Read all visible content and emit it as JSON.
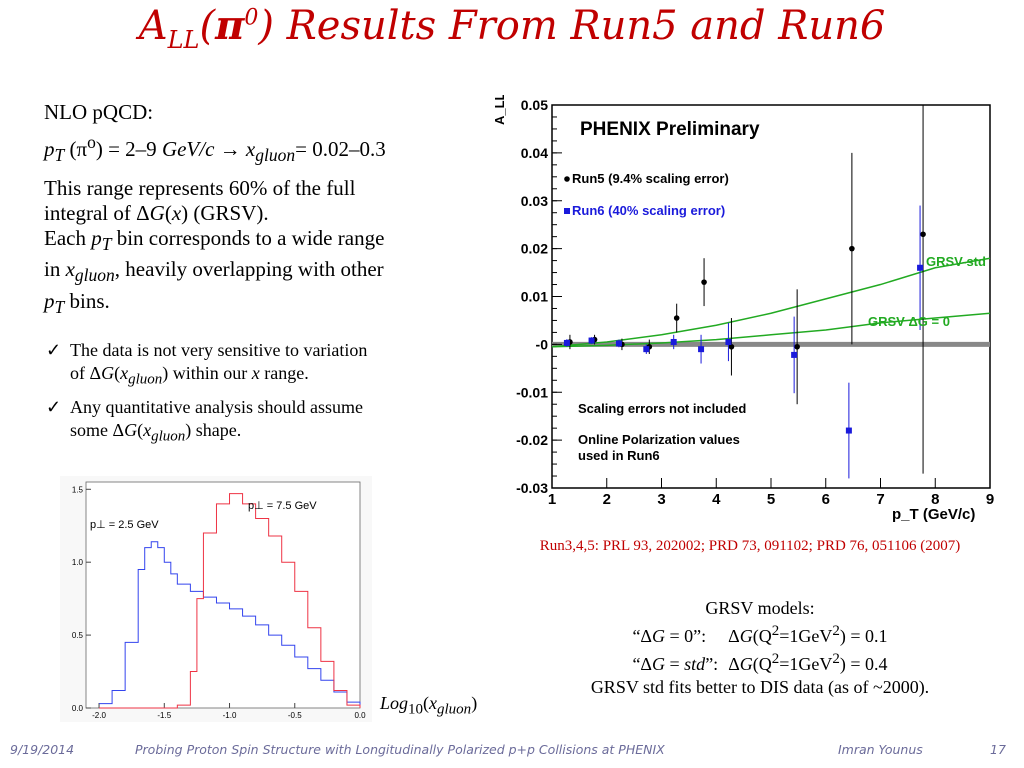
{
  "title": {
    "prefix": "A",
    "subscript": "LL",
    "paren_open": "(",
    "pi": "π",
    "pi_sup": "0",
    "rest": ") Results From Run5 and Run6"
  },
  "left_text": {
    "line1": "NLO pQCD:",
    "line2_a": "p",
    "line2_a_sub": "T",
    "line2_b": " (π",
    "line2_b_sup": "o",
    "line2_c": ") = 2–9 ",
    "line2_unit": "GeV/c",
    "line2_arrow": " → ",
    "line2_x": "x",
    "line2_x_sub": "gluon",
    "line2_d": "= 0.02–0.3",
    "para1": "This range represents 60% of the full",
    "para1b_a": "integral of Δ",
    "para1b_G": "G",
    "para1b_b": "(",
    "para1b_x": "x",
    "para1b_c": ") (GRSV).",
    "para2_a": "Each ",
    "para2_p": "p",
    "para2_T": "T",
    "para2_b": " bin corresponds to a wide range",
    "para2c_a": "in ",
    "para2c_x": "x",
    "para2c_sub": "gluon",
    "para2c_b": ", heavily overlapping with other",
    "para2d_p": "p",
    "para2d_T": "T",
    "para2d_b": " bins.",
    "bullets": [
      {
        "a": "The data is not very sensitive to variation",
        "b1": "of Δ",
        "G": "G",
        "b2": "(",
        "x": "x",
        "sub": "gluon",
        "b3": ") within our ",
        "x2": "x",
        "b4": " range."
      },
      {
        "a": "Any quantitative analysis should assume",
        "b1": "some Δ",
        "G": "G",
        "b2": "(",
        "x": "x",
        "sub": "gluon",
        "b3": ") shape."
      }
    ],
    "bullet_mark": "✓"
  },
  "reference": "Run3,4,5: PRL 93, 202002; PRD 73, 091102; PRD 76, 051106 (2007)",
  "grsv_box": {
    "l1": "GRSV models:",
    "l2_a": "“Δ",
    "l2_G": "G",
    "l2_b": " = 0”:",
    "l2_c": "Δ",
    "l2_G2": "G",
    "l2_d": "(Q",
    "l2_e": "2",
    "l2_f": "=1GeV",
    "l2_g": "2",
    "l2_h": ") = 0.1",
    "l3_a": "“Δ",
    "l3_G": "G",
    "l3_b": " = ",
    "l3_std": "std",
    "l3_c": "”:",
    "l3_d": "Δ",
    "l3_G2": "G",
    "l3_e": "(Q",
    "l3_f": "2",
    "l3_g": "=1GeV",
    "l3_h": "2",
    "l3_i": ") = 0.4",
    "l4": "GRSV std fits better to DIS data (as of  ~2000)."
  },
  "log_label": {
    "a": "Log",
    "sub": "10",
    "b": "(",
    "x": "x",
    "xsub": "gluon",
    "c": ")"
  },
  "footer": {
    "date": "9/19/2014",
    "talk": "Probing Proton Spin Structure with Longitudinally Polarized p+p Collisions at PHENIX",
    "author": "Imran Younus",
    "page": "17"
  },
  "chart_data": [
    {
      "type": "scatter",
      "title": "PHENIX Preliminary",
      "xlabel": "p_T (GeV/c)",
      "ylabel": "A_LL^π0",
      "xlim": [
        1,
        9
      ],
      "ylim": [
        -0.03,
        0.05
      ],
      "xticks": [
        "1",
        "2",
        "3",
        "4",
        "5",
        "6",
        "7",
        "8",
        "9"
      ],
      "yticks": [
        "0.05",
        "0.04",
        "0.03",
        "0.02",
        "0.01",
        "-0",
        "-0.01",
        "-0.02",
        "-0.03"
      ],
      "series": [
        {
          "name": "Run5 (9.4% scaling error)",
          "color": "#000000",
          "marker": "circle",
          "x": [
            1.3,
            1.75,
            2.25,
            2.75,
            3.25,
            3.75,
            4.25,
            5.45,
            6.45,
            7.75
          ],
          "y": [
            0.0005,
            0.001,
            0.0,
            -0.0005,
            0.0055,
            0.013,
            -0.0005,
            -0.0005,
            0.02,
            0.023
          ],
          "err": [
            0.0015,
            0.001,
            0.0012,
            0.0015,
            0.003,
            0.005,
            0.006,
            0.012,
            0.02,
            0.05
          ]
        },
        {
          "name": "Run6 (40% scaling error)",
          "color": "#1a1adb",
          "marker": "square",
          "x": [
            1.3,
            1.75,
            2.25,
            2.75,
            3.25,
            3.75,
            4.25,
            5.45,
            6.45,
            7.75
          ],
          "y": [
            0.0003,
            0.0008,
            0.0002,
            -0.001,
            0.0005,
            -0.001,
            0.0005,
            -0.0022,
            -0.018,
            0.016
          ],
          "err": [
            0.0008,
            0.0007,
            0.0008,
            0.001,
            0.0015,
            0.003,
            0.004,
            0.008,
            0.01,
            0.013
          ]
        }
      ],
      "curves": [
        {
          "name": "GRSV-std",
          "color": "#22aa22",
          "x": [
            1,
            2,
            3,
            4,
            5,
            6,
            7,
            8,
            9
          ],
          "y": [
            -0.0005,
            0.0005,
            0.002,
            0.004,
            0.0065,
            0.0095,
            0.0125,
            0.016,
            0.018
          ]
        },
        {
          "name": "GRSV ΔG = 0",
          "color": "#22aa22",
          "x": [
            1,
            2,
            3,
            4,
            5,
            6,
            7,
            8,
            9
          ],
          "y": [
            -0.0005,
            -0.0002,
            0.0003,
            0.001,
            0.002,
            0.003,
            0.0045,
            0.0055,
            0.0065
          ]
        }
      ],
      "annotations": [
        "Scaling errors not included",
        "Online Polarization values",
        "used in Run6"
      ]
    },
    {
      "type": "line",
      "xlabel": "Log10(x_gluon)",
      "xlim": [
        -2.1,
        0.0
      ],
      "ylim": [
        0.0,
        1.55
      ],
      "xticks": [
        "-2.0",
        "-1.5",
        "-1.0",
        "-0.5",
        "0.0"
      ],
      "yticks": [
        "0.0",
        "0.5",
        "1.0",
        "1.5"
      ],
      "series": [
        {
          "name": "p⊥ = 2.5 GeV",
          "color": "#3344ee",
          "x": [
            -2.0,
            -1.9,
            -1.8,
            -1.7,
            -1.65,
            -1.6,
            -1.55,
            -1.5,
            -1.45,
            -1.4,
            -1.3,
            -1.2,
            -1.1,
            -1.0,
            -0.9,
            -0.8,
            -0.7,
            -0.6,
            -0.5,
            -0.4,
            -0.3,
            -0.2,
            -0.1,
            0.0
          ],
          "y": [
            0.03,
            0.12,
            0.45,
            0.95,
            1.1,
            1.14,
            1.1,
            1.0,
            0.92,
            0.85,
            0.8,
            0.76,
            0.72,
            0.68,
            0.63,
            0.57,
            0.5,
            0.43,
            0.35,
            0.27,
            0.19,
            0.11,
            0.04,
            0.0
          ]
        },
        {
          "name": "p⊥ = 7.5 GeV",
          "color": "#ee3344",
          "x": [
            -2.0,
            -1.6,
            -1.4,
            -1.3,
            -1.25,
            -1.2,
            -1.1,
            -1.0,
            -0.9,
            -0.8,
            -0.7,
            -0.6,
            -0.5,
            -0.4,
            -0.3,
            -0.2,
            -0.1,
            0.0
          ],
          "y": [
            0.0,
            0.0,
            0.02,
            0.25,
            0.75,
            1.2,
            1.4,
            1.47,
            1.4,
            1.3,
            1.18,
            1.0,
            0.8,
            0.55,
            0.32,
            0.12,
            0.02,
            0.0
          ]
        }
      ]
    }
  ]
}
